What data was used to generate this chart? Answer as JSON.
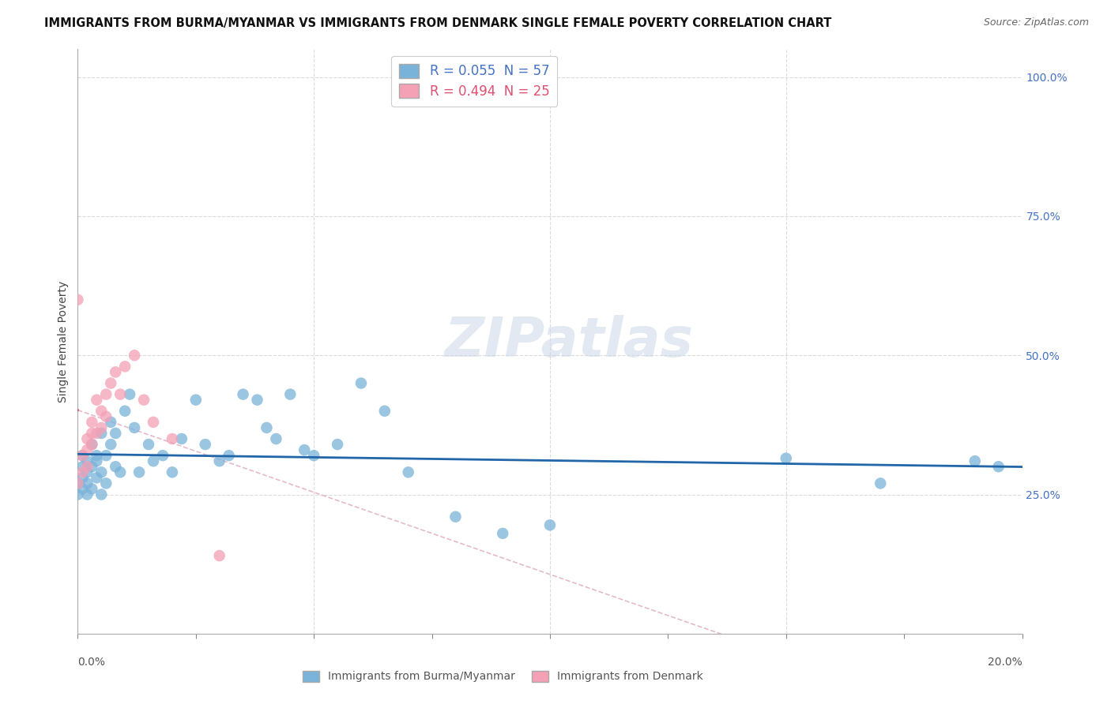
{
  "title": "IMMIGRANTS FROM BURMA/MYANMAR VS IMMIGRANTS FROM DENMARK SINGLE FEMALE POVERTY CORRELATION CHART",
  "source": "Source: ZipAtlas.com",
  "ylabel": "Single Female Poverty",
  "watermark": "ZIPatlas",
  "blue_R": 0.055,
  "blue_N": 57,
  "pink_R": 0.494,
  "pink_N": 25,
  "blue_color": "#7ab3d9",
  "pink_color": "#f4a0b5",
  "blue_line_color": "#2266aa",
  "pink_line_color": "#e05070",
  "pink_dash_color": "#ddaabb",
  "xlim": [
    0.0,
    0.2
  ],
  "ylim": [
    0.0,
    1.05
  ],
  "background_color": "#ffffff",
  "grid_color": "#cccccc",
  "blue_scatter_x": [
    0.0,
    0.0,
    0.001,
    0.001,
    0.001,
    0.001,
    0.002,
    0.002,
    0.002,
    0.002,
    0.003,
    0.003,
    0.003,
    0.004,
    0.004,
    0.004,
    0.005,
    0.005,
    0.005,
    0.006,
    0.006,
    0.007,
    0.007,
    0.008,
    0.008,
    0.009,
    0.01,
    0.011,
    0.012,
    0.013,
    0.015,
    0.016,
    0.018,
    0.02,
    0.022,
    0.025,
    0.027,
    0.03,
    0.032,
    0.035,
    0.038,
    0.04,
    0.042,
    0.045,
    0.048,
    0.05,
    0.055,
    0.06,
    0.065,
    0.07,
    0.08,
    0.09,
    0.1,
    0.15,
    0.17,
    0.19,
    0.195
  ],
  "blue_scatter_y": [
    0.27,
    0.25,
    0.28,
    0.3,
    0.26,
    0.32,
    0.29,
    0.31,
    0.27,
    0.25,
    0.3,
    0.26,
    0.34,
    0.32,
    0.28,
    0.31,
    0.36,
    0.29,
    0.25,
    0.32,
    0.27,
    0.38,
    0.34,
    0.36,
    0.3,
    0.29,
    0.4,
    0.43,
    0.37,
    0.29,
    0.34,
    0.31,
    0.32,
    0.29,
    0.35,
    0.42,
    0.34,
    0.31,
    0.32,
    0.43,
    0.42,
    0.37,
    0.35,
    0.43,
    0.33,
    0.32,
    0.34,
    0.45,
    0.4,
    0.29,
    0.21,
    0.18,
    0.195,
    0.315,
    0.27,
    0.31,
    0.3
  ],
  "pink_scatter_x": [
    0.0,
    0.0,
    0.001,
    0.001,
    0.002,
    0.002,
    0.002,
    0.003,
    0.003,
    0.003,
    0.004,
    0.004,
    0.005,
    0.005,
    0.006,
    0.006,
    0.007,
    0.008,
    0.009,
    0.01,
    0.012,
    0.014,
    0.016,
    0.02,
    0.03
  ],
  "pink_scatter_y": [
    0.6,
    0.27,
    0.29,
    0.32,
    0.3,
    0.35,
    0.33,
    0.36,
    0.34,
    0.38,
    0.42,
    0.36,
    0.37,
    0.4,
    0.43,
    0.39,
    0.45,
    0.47,
    0.43,
    0.48,
    0.5,
    0.42,
    0.38,
    0.35,
    0.14
  ],
  "right_yticks": [
    0.25,
    0.5,
    0.75,
    1.0
  ],
  "right_yticklabels": [
    "25.0%",
    "50.0%",
    "75.0%",
    "100.0%"
  ]
}
